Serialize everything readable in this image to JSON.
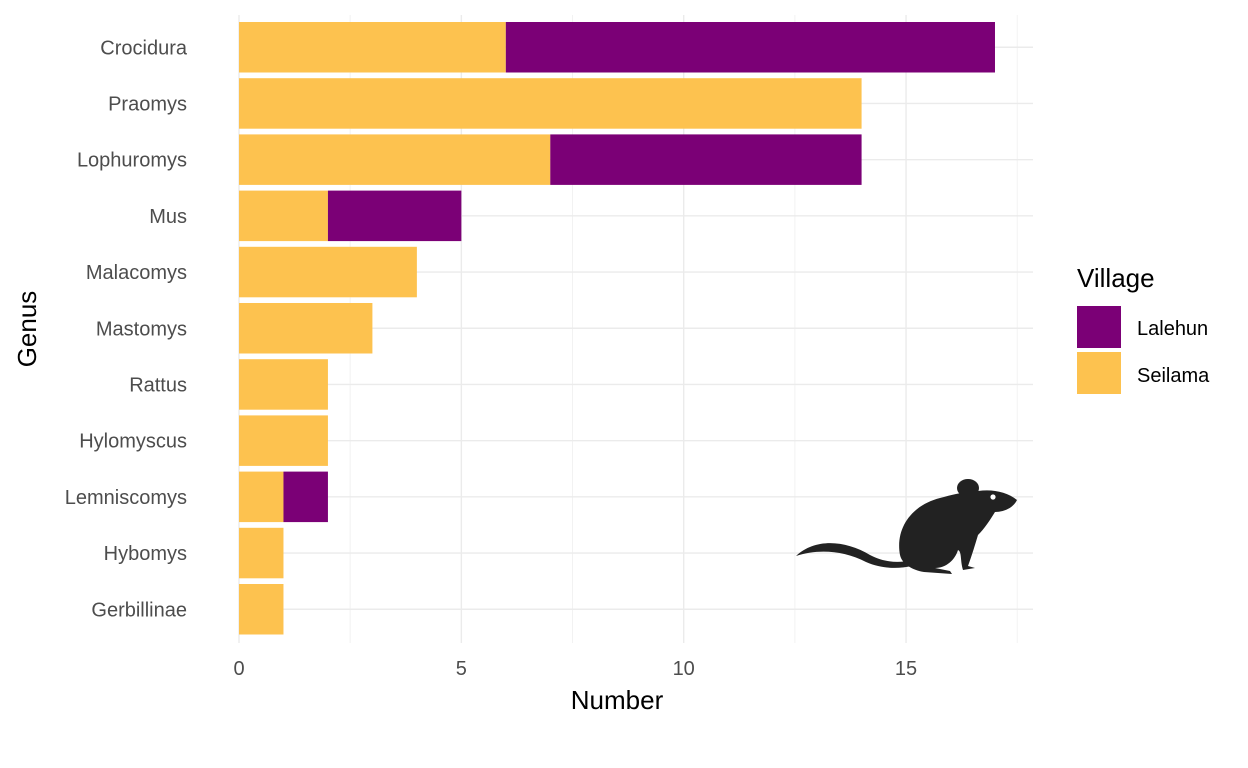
{
  "chart_data": {
    "type": "bar",
    "orientation": "horizontal",
    "stacked": true,
    "categories": [
      "Crocidura",
      "Praomys",
      "Lophuromys",
      "Mus",
      "Malacomys",
      "Mastomys",
      "Rattus",
      "Hylomyscus",
      "Lemniscomys",
      "Hybomys",
      "Gerbillinae"
    ],
    "series": [
      {
        "name": "Seilama",
        "color": "#FDC24F",
        "values": [
          6,
          14,
          7,
          2,
          4,
          3,
          2,
          2,
          1,
          1,
          1
        ]
      },
      {
        "name": "Lalehun",
        "color": "#7B0076",
        "values": [
          11,
          0,
          7,
          3,
          0,
          0,
          0,
          0,
          1,
          0,
          0
        ]
      }
    ],
    "xlabel": "Number",
    "ylabel": "Genus",
    "xlim": [
      0,
      17.85
    ],
    "xticks": [
      0,
      5,
      10,
      15
    ],
    "grid": true,
    "legend": {
      "title": "Village",
      "position": "right",
      "entries": [
        "Lalehun",
        "Seilama"
      ]
    },
    "annotation_icon": "rodent-silhouette-icon"
  }
}
